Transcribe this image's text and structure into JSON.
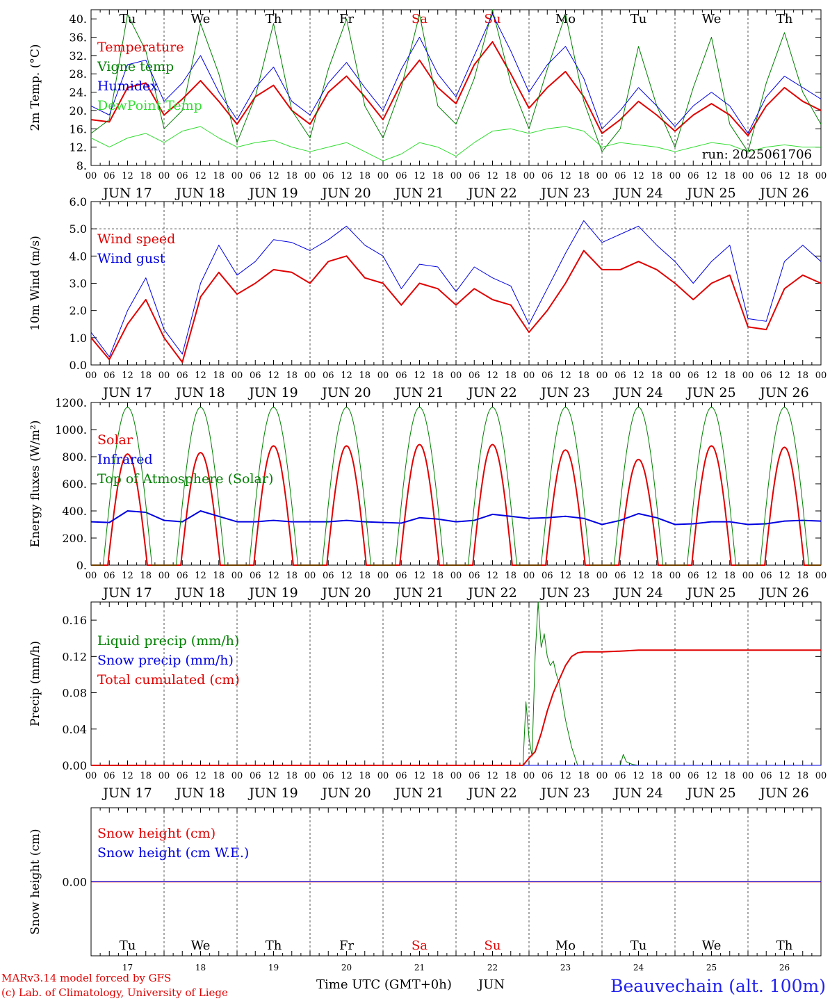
{
  "run_label": "run: 2025061706",
  "time_axis_label": "Time UTC (GMT+0h)",
  "month_label": "JUN",
  "station_label": "Beauvechain (alt. 100m)",
  "credits": [
    "MARv3.14 model forced by GFS",
    "(c) Lab. of Climatology, University of Liege"
  ],
  "days": [
    {
      "weekday": "Tu",
      "date": "JUN 17",
      "num": "17",
      "weekend": false
    },
    {
      "weekday": "We",
      "date": "JUN 18",
      "num": "18",
      "weekend": false
    },
    {
      "weekday": "Th",
      "date": "JUN 19",
      "num": "19",
      "weekend": false
    },
    {
      "weekday": "Fr",
      "date": "JUN 20",
      "num": "20",
      "weekend": false
    },
    {
      "weekday": "Sa",
      "date": "JUN 21",
      "num": "21",
      "weekend": true
    },
    {
      "weekday": "Su",
      "date": "JUN 22",
      "num": "22",
      "weekend": true
    },
    {
      "weekday": "Mo",
      "date": "JUN 23",
      "num": "23",
      "weekend": false
    },
    {
      "weekday": "Tu",
      "date": "JUN 24",
      "num": "24",
      "weekend": false
    },
    {
      "weekday": "We",
      "date": "JUN 25",
      "num": "25",
      "weekend": false
    },
    {
      "weekday": "Th",
      "date": "JUN 26",
      "num": "26",
      "weekend": false
    }
  ],
  "hour_ticks": [
    "00",
    "06",
    "12",
    "18"
  ],
  "colors": {
    "red": "#e00000",
    "green": "#008000",
    "blue": "#0000e0",
    "lime": "#33dd33",
    "axis": "#000000",
    "weekend": "#e00000",
    "station": "#2222ee"
  },
  "chart_data": [
    {
      "id": "temp",
      "type": "line",
      "ylabel": "2m Temp. (°C)",
      "ylim": [
        8,
        42
      ],
      "yticks": [
        8,
        12,
        16,
        20,
        24,
        28,
        32,
        36,
        40
      ],
      "ytick_labels": [
        "8.",
        "12.",
        "16.",
        "20.",
        "24.",
        "28.",
        "32.",
        "36.",
        "40."
      ],
      "x_unit": "hours since JUN 17 00 UTC",
      "x": [
        0,
        6,
        12,
        18,
        24,
        30,
        36,
        42,
        48,
        54,
        60,
        66,
        72,
        78,
        84,
        90,
        96,
        102,
        108,
        114,
        120,
        126,
        132,
        138,
        144,
        150,
        156,
        162,
        168,
        174,
        180,
        186,
        192,
        198,
        204,
        210,
        216,
        222,
        228,
        234,
        240
      ],
      "series": [
        {
          "name": "Temperature",
          "color": "red",
          "width": 2,
          "values": [
            18,
            17.5,
            25,
            26,
            19,
            22.5,
            26.5,
            22,
            17,
            23,
            25.5,
            20,
            17,
            24,
            27.5,
            23,
            18,
            26,
            31,
            25,
            21.5,
            30,
            35,
            28,
            20.5,
            25,
            28.5,
            23,
            15,
            18,
            22,
            19,
            15.5,
            19,
            21.5,
            19,
            14.5,
            21,
            25,
            22,
            20
          ]
        },
        {
          "name": "Vigne temp",
          "color": "green",
          "width": 1,
          "values": [
            15,
            18,
            41,
            33,
            16,
            20,
            39,
            28,
            13,
            23,
            39,
            20,
            14,
            29,
            40,
            21,
            14,
            25,
            41,
            21,
            17,
            27,
            42,
            26,
            16,
            29,
            41,
            22,
            11,
            16,
            34,
            21,
            12,
            25,
            36,
            17,
            11,
            26,
            37,
            24,
            17
          ]
        },
        {
          "name": "Humidex",
          "color": "blue",
          "width": 1,
          "values": [
            21,
            19,
            30,
            31,
            22,
            26,
            32,
            24,
            18,
            25,
            29.5,
            22,
            19,
            26,
            30.5,
            25,
            20,
            29,
            36,
            28,
            23,
            32,
            41,
            33,
            24,
            30,
            34,
            27,
            16,
            20,
            25,
            21,
            16.5,
            21,
            24,
            21,
            15,
            23,
            27.5,
            25,
            22.5
          ]
        },
        {
          "name": "DewPoint Temp",
          "color": "lime",
          "width": 1,
          "values": [
            14,
            12,
            14,
            15,
            13,
            15.5,
            16.5,
            14,
            12,
            13,
            13.5,
            12,
            11,
            12,
            13,
            11,
            9,
            10.5,
            13,
            12,
            10,
            13,
            15.5,
            16,
            15,
            16,
            16.5,
            15.5,
            12,
            13,
            12.5,
            12,
            11,
            12,
            13,
            12.5,
            11,
            12,
            12.5,
            12,
            12
          ]
        }
      ],
      "legend": [
        "Temperature",
        "Vigne temp",
        "Humidex",
        "DewPoint Temp"
      ]
    },
    {
      "id": "wind",
      "type": "line",
      "ylabel": "10m Wind (m/s)",
      "ylim": [
        0,
        6
      ],
      "ref_line": 5,
      "yticks": [
        0,
        1,
        2,
        3,
        4,
        5,
        6
      ],
      "ytick_labels": [
        "0.0",
        "1.0",
        "2.0",
        "3.0",
        "4.0",
        "5.0",
        "6.0"
      ],
      "x": [
        0,
        6,
        12,
        18,
        24,
        30,
        36,
        42,
        48,
        54,
        60,
        66,
        72,
        78,
        84,
        90,
        96,
        102,
        108,
        114,
        120,
        126,
        132,
        138,
        144,
        150,
        156,
        162,
        168,
        174,
        180,
        186,
        192,
        198,
        204,
        210,
        216,
        222,
        228,
        234,
        240
      ],
      "series": [
        {
          "name": "Wind speed",
          "color": "red",
          "width": 2,
          "values": [
            1,
            0.2,
            1.5,
            2.4,
            1,
            0.1,
            2.5,
            3.4,
            2.6,
            3,
            3.5,
            3.4,
            3,
            3.8,
            4,
            3.2,
            3,
            2.2,
            3,
            2.8,
            2.2,
            2.8,
            2.4,
            2.2,
            1.2,
            2,
            3,
            4.2,
            3.5,
            3.5,
            3.8,
            3.5,
            3,
            2.4,
            3,
            3.3,
            1.4,
            1.3,
            2.8,
            3.3,
            3
          ]
        },
        {
          "name": "Wind gust",
          "color": "blue",
          "width": 1,
          "values": [
            1.2,
            0.3,
            2,
            3.2,
            1.3,
            0.4,
            3,
            4.4,
            3.3,
            3.8,
            4.6,
            4.5,
            4.2,
            4.6,
            5.1,
            4.4,
            4,
            2.8,
            3.7,
            3.6,
            2.7,
            3.6,
            3.2,
            2.9,
            1.5,
            2.8,
            4.1,
            5.3,
            4.5,
            4.8,
            5.1,
            4.4,
            3.8,
            3,
            3.8,
            4.4,
            1.7,
            1.6,
            3.8,
            4.4,
            3.8
          ]
        }
      ],
      "legend": [
        "Wind speed",
        "Wind gust"
      ]
    },
    {
      "id": "energy",
      "type": "line",
      "ylabel": "Energy fluxes (W/m²)",
      "ylim": [
        0,
        1200
      ],
      "yticks": [
        0,
        200,
        400,
        600,
        800,
        1000,
        1200
      ],
      "ytick_labels": [
        "0.",
        "200.",
        "400.",
        "600.",
        "800.",
        "1000.",
        "1200."
      ],
      "x": [
        0,
        6,
        12,
        18,
        24,
        30,
        36,
        42,
        48,
        54,
        60,
        66,
        72,
        78,
        84,
        90,
        96,
        102,
        108,
        114,
        120,
        126,
        132,
        138,
        144,
        150,
        156,
        162,
        168,
        174,
        180,
        186,
        192,
        198,
        204,
        210,
        216,
        222,
        228,
        234,
        240
      ],
      "series": [
        {
          "name": "Solar",
          "color": "red",
          "width": 2,
          "daily_peaks": [
            820,
            830,
            880,
            880,
            890,
            890,
            850,
            780,
            880,
            870
          ]
        },
        {
          "name": "Infrared",
          "color": "blue",
          "width": 2,
          "values": [
            320,
            315,
            400,
            390,
            330,
            320,
            400,
            360,
            320,
            320,
            330,
            320,
            320,
            320,
            330,
            320,
            315,
            310,
            350,
            340,
            320,
            330,
            375,
            360,
            345,
            350,
            360,
            345,
            300,
            330,
            380,
            350,
            300,
            305,
            320,
            320,
            300,
            305,
            325,
            330,
            325
          ]
        },
        {
          "name": "Top of Atmosphere (Solar)",
          "color": "green",
          "width": 1,
          "daily_peaks": [
            1165,
            1165,
            1165,
            1165,
            1165,
            1165,
            1165,
            1165,
            1165,
            1165
          ]
        }
      ],
      "legend": [
        "Solar",
        "Infrared",
        "Top of Atmosphere (Solar)"
      ]
    },
    {
      "id": "precip",
      "type": "line",
      "ylabel": "Precip (mm/h)",
      "ylim": [
        0,
        0.18
      ],
      "yticks": [
        0,
        0.04,
        0.08,
        0.12,
        0.16
      ],
      "ytick_labels": [
        "0.00",
        "0.04",
        "0.08",
        "0.12",
        "0.16"
      ],
      "series": [
        {
          "name": "Liquid precip (mm/h)",
          "color": "green",
          "width": 1,
          "x": [
            0,
            140,
            142,
            143,
            144,
            145,
            146,
            147,
            148,
            149,
            150,
            151,
            152,
            153,
            154,
            156,
            158,
            160,
            162,
            164,
            166,
            168,
            174,
            175,
            176,
            178,
            180,
            240
          ],
          "values": [
            0,
            0,
            0,
            0.07,
            0.03,
            0.01,
            0.12,
            0.18,
            0.13,
            0.145,
            0.12,
            0.11,
            0.115,
            0.1,
            0.09,
            0.05,
            0.02,
            0,
            0,
            0,
            0,
            0,
            0,
            0.012,
            0.004,
            0.001,
            0,
            0
          ]
        },
        {
          "name": "Snow precip (mm/h)",
          "color": "blue",
          "width": 1,
          "x": [
            0,
            240
          ],
          "values": [
            0,
            0
          ]
        },
        {
          "name": "Total cumulated (cm)",
          "color": "red",
          "width": 2,
          "x": [
            0,
            142,
            144,
            146,
            148,
            150,
            152,
            154,
            156,
            158,
            160,
            162,
            166,
            168,
            175,
            180,
            240
          ],
          "values": [
            0,
            0,
            0.008,
            0.015,
            0.035,
            0.06,
            0.08,
            0.095,
            0.11,
            0.12,
            0.124,
            0.125,
            0.125,
            0.125,
            0.126,
            0.127,
            0.127
          ]
        }
      ],
      "legend": [
        "Liquid precip (mm/h)",
        "Snow precip (mm/h)",
        "Total cumulated (cm)"
      ]
    },
    {
      "id": "snow",
      "type": "line",
      "ylabel": "Snow height (cm)",
      "ylim": [
        -1,
        1
      ],
      "yticks": [
        0
      ],
      "ytick_labels": [
        "0.00"
      ],
      "series": [
        {
          "name": "Snow height (cm)",
          "color": "red",
          "width": 1.5,
          "x": [
            0,
            240
          ],
          "values": [
            0,
            0
          ]
        },
        {
          "name": "Snow height (cm W.E.)",
          "color": "blue",
          "width": 1,
          "x": [
            0,
            240
          ],
          "values": [
            0,
            0
          ]
        }
      ],
      "legend": [
        "Snow height (cm)",
        "Snow height (cm W.E.)"
      ]
    }
  ]
}
